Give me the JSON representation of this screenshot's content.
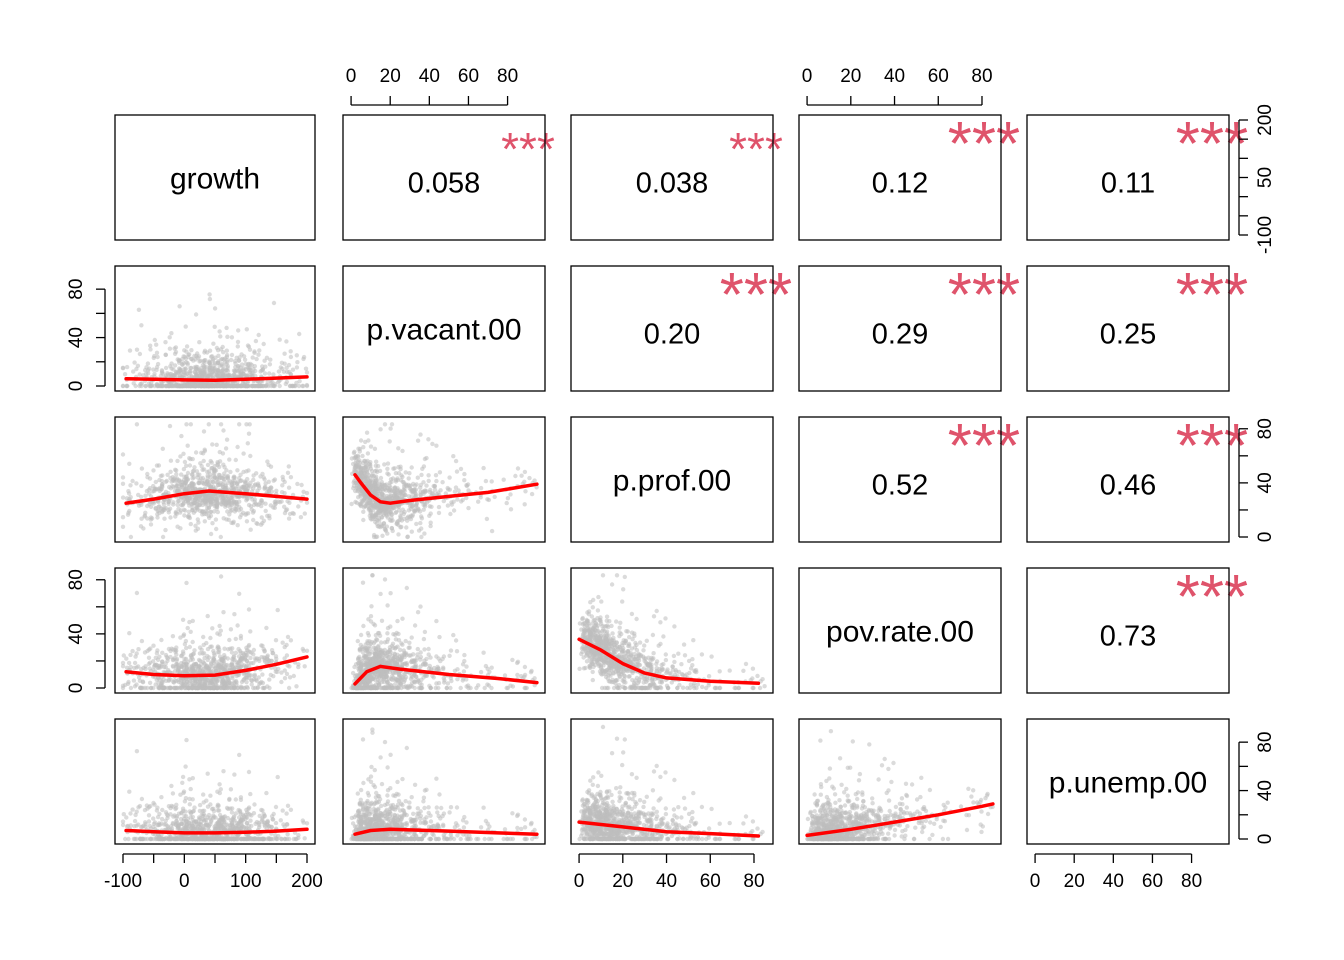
{
  "chart_data": {
    "type": "scatter",
    "kind": "pairs-matrix",
    "variables": [
      "growth",
      "p.vacant.00",
      "p.prof.00",
      "pov.rate.00",
      "p.unemp.00"
    ],
    "ranges": {
      "growth": [
        -100,
        200
      ],
      "p.vacant.00": [
        0,
        95
      ],
      "p.prof.00": [
        0,
        85
      ],
      "pov.rate.00": [
        0,
        85
      ],
      "p.unemp.00": [
        0,
        95
      ]
    },
    "ticks": {
      "growth": [
        -100,
        -50,
        0,
        50,
        100,
        150,
        200
      ],
      "p.vacant.00": [
        0,
        20,
        40,
        60,
        80
      ],
      "p.prof.00": [
        0,
        20,
        40,
        60,
        80
      ],
      "pov.rate.00": [
        0,
        20,
        40,
        60,
        80
      ],
      "p.unemp.00": [
        0,
        20,
        40,
        60,
        80
      ]
    },
    "tick_labels": {
      "growth_bottom": [
        "-100",
        "0",
        "100",
        "200"
      ],
      "growth_right": [
        "-100",
        "50",
        "200"
      ],
      "p.vacant.00_top": [
        "0",
        "20",
        "40",
        "60",
        "80"
      ],
      "p.vacant.00_left": [
        "0",
        "40",
        "80"
      ],
      "p.prof.00_bottom": [
        "0",
        "20",
        "40",
        "60",
        "80"
      ],
      "p.prof.00_right": [
        "0",
        "40",
        "80"
      ],
      "pov.rate.00_top": [
        "0",
        "20",
        "40",
        "60",
        "80"
      ],
      "pov.rate.00_left": [
        "0",
        "40",
        "80"
      ],
      "p.unemp.00_bottom": [
        "0",
        "20",
        "40",
        "60",
        "80"
      ],
      "p.unemp.00_right": [
        "0",
        "40",
        "80"
      ]
    },
    "correlations": [
      {
        "row": "growth",
        "col": "p.vacant.00",
        "r": "0.058",
        "stars": "***"
      },
      {
        "row": "growth",
        "col": "p.prof.00",
        "r": "0.038",
        "stars": "***"
      },
      {
        "row": "growth",
        "col": "pov.rate.00",
        "r": "0.12",
        "stars": "***"
      },
      {
        "row": "growth",
        "col": "p.unemp.00",
        "r": "0.11",
        "stars": "***"
      },
      {
        "row": "p.vacant.00",
        "col": "p.prof.00",
        "r": "0.20",
        "stars": "***"
      },
      {
        "row": "p.vacant.00",
        "col": "pov.rate.00",
        "r": "0.29",
        "stars": "***"
      },
      {
        "row": "p.vacant.00",
        "col": "p.unemp.00",
        "r": "0.25",
        "stars": "***"
      },
      {
        "row": "p.prof.00",
        "col": "pov.rate.00",
        "r": "0.52",
        "stars": "***"
      },
      {
        "row": "p.prof.00",
        "col": "p.unemp.00",
        "r": "0.46",
        "stars": "***"
      },
      {
        "row": "pov.rate.00",
        "col": "p.unemp.00",
        "r": "0.73",
        "stars": "***"
      }
    ],
    "smooth_curves": [
      {
        "x": "growth",
        "y": "p.vacant.00",
        "points": [
          [
            -95,
            6
          ],
          [
            -50,
            5.5
          ],
          [
            0,
            5
          ],
          [
            50,
            4.8
          ],
          [
            100,
            5.5
          ],
          [
            150,
            6.5
          ],
          [
            200,
            7.5
          ]
        ]
      },
      {
        "x": "growth",
        "y": "p.prof.00",
        "points": [
          [
            -95,
            25
          ],
          [
            -50,
            28
          ],
          [
            0,
            32
          ],
          [
            40,
            34
          ],
          [
            100,
            32
          ],
          [
            150,
            30
          ],
          [
            200,
            28
          ]
        ]
      },
      {
        "x": "p.vacant.00",
        "y": "p.prof.00",
        "points": [
          [
            2,
            46
          ],
          [
            5,
            40
          ],
          [
            10,
            31
          ],
          [
            15,
            26
          ],
          [
            20,
            25
          ],
          [
            30,
            27
          ],
          [
            50,
            30
          ],
          [
            70,
            33
          ],
          [
            95,
            39
          ]
        ]
      },
      {
        "x": "growth",
        "y": "pov.rate.00",
        "points": [
          [
            -95,
            12
          ],
          [
            -50,
            10
          ],
          [
            0,
            9
          ],
          [
            50,
            9.5
          ],
          [
            100,
            13
          ],
          [
            150,
            17.5
          ],
          [
            200,
            23
          ]
        ]
      },
      {
        "x": "p.vacant.00",
        "y": "pov.rate.00",
        "points": [
          [
            2,
            3
          ],
          [
            8,
            12
          ],
          [
            15,
            16
          ],
          [
            25,
            14
          ],
          [
            50,
            10
          ],
          [
            75,
            7
          ],
          [
            95,
            4
          ]
        ]
      },
      {
        "x": "p.prof.00",
        "y": "pov.rate.00",
        "points": [
          [
            0,
            36
          ],
          [
            10,
            28
          ],
          [
            20,
            18
          ],
          [
            30,
            11
          ],
          [
            40,
            7.5
          ],
          [
            60,
            5
          ],
          [
            82,
            3.5
          ]
        ]
      },
      {
        "x": "growth",
        "y": "p.unemp.00",
        "points": [
          [
            -95,
            7
          ],
          [
            -50,
            6
          ],
          [
            0,
            5
          ],
          [
            50,
            5
          ],
          [
            100,
            5.5
          ],
          [
            150,
            6.5
          ],
          [
            200,
            8
          ]
        ]
      },
      {
        "x": "p.vacant.00",
        "y": "p.unemp.00",
        "points": [
          [
            2,
            4
          ],
          [
            10,
            7
          ],
          [
            20,
            8
          ],
          [
            50,
            6.5
          ],
          [
            75,
            5
          ],
          [
            95,
            4
          ]
        ]
      },
      {
        "x": "p.prof.00",
        "y": "p.unemp.00",
        "points": [
          [
            0,
            14
          ],
          [
            20,
            10
          ],
          [
            40,
            6
          ],
          [
            60,
            4.5
          ],
          [
            82,
            2.5
          ]
        ]
      },
      {
        "x": "pov.rate.00",
        "y": "p.unemp.00",
        "points": [
          [
            0,
            3
          ],
          [
            20,
            8
          ],
          [
            40,
            14
          ],
          [
            60,
            20
          ],
          [
            80,
            27
          ],
          [
            85,
            29
          ]
        ]
      }
    ],
    "colors": {
      "points": "#BEBEBE",
      "smooth": "#FF0000",
      "stars": "#DF536B",
      "text": "#000000"
    }
  }
}
